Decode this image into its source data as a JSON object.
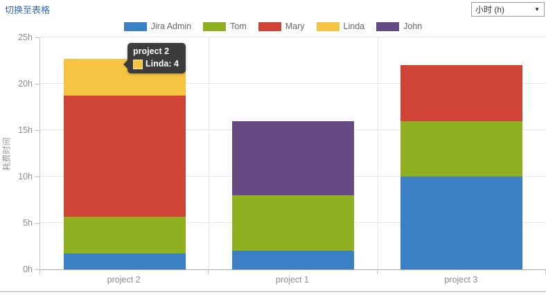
{
  "header": {
    "switch_link": "切换至表格",
    "unit_select": {
      "value": "小时 (h)"
    },
    "link_color": "#3067c4"
  },
  "tooltip": {
    "title": "project 2",
    "series": "Linda",
    "value": "4",
    "text": "Linda: 4",
    "color": "#f6c342",
    "background": "#3c3c3c"
  },
  "chart_data": {
    "type": "bar",
    "stacked": true,
    "title": "",
    "xlabel": "",
    "ylabel": "耗费时间",
    "categories": [
      "project 2",
      "project 1",
      "project 3"
    ],
    "series": [
      {
        "name": "Jira Admin",
        "color": "#3b7fc4",
        "values": [
          1.7,
          2,
          10
        ]
      },
      {
        "name": "Tom",
        "color": "#8eb021",
        "values": [
          4,
          6,
          6
        ]
      },
      {
        "name": "Mary",
        "color": "#d04437",
        "values": [
          13,
          0,
          6
        ]
      },
      {
        "name": "Linda",
        "color": "#f6c342",
        "values": [
          4,
          0,
          0
        ]
      },
      {
        "name": "John",
        "color": "#654982",
        "values": [
          0,
          8,
          0
        ]
      }
    ],
    "ylim": [
      0,
      25
    ],
    "yticks": [
      0,
      5,
      10,
      15,
      20,
      25
    ],
    "ytick_labels": [
      "0h",
      "5h",
      "10h",
      "15h",
      "20h",
      "25h"
    ],
    "grid": true,
    "legend_position": "top",
    "unit": "h"
  },
  "style": {
    "grid_color": "#e6e6e6",
    "axis_color": "#a9a9a9",
    "tick_text_color": "#8c8c8c",
    "legend_text_color": "#666666"
  }
}
